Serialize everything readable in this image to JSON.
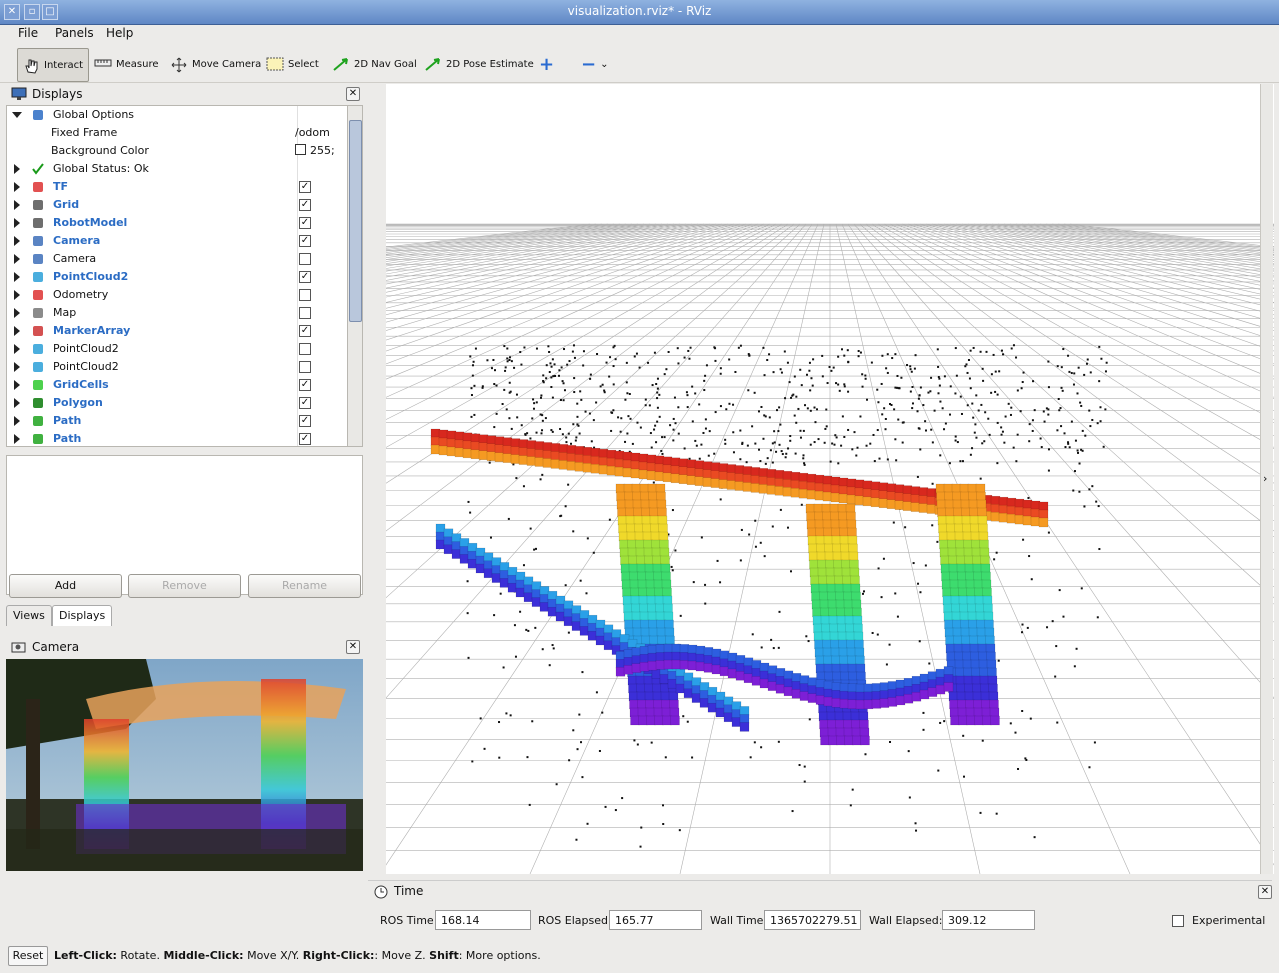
{
  "window": {
    "title": "visualization.rviz* - RViz"
  },
  "menu": {
    "file": "File",
    "panels": "Panels",
    "help": "Help"
  },
  "toolbar": {
    "interact": "Interact",
    "measure": "Measure",
    "move_camera": "Move Camera",
    "select": "Select",
    "nav_goal": "2D Nav Goal",
    "pose_estimate": "2D Pose Estimate"
  },
  "displays": {
    "title": "Displays",
    "items": [
      {
        "label": "Global Options",
        "value": "",
        "checked": null,
        "bold": false,
        "expanded": true
      },
      {
        "label": "Fixed Frame",
        "value": "/odom",
        "checked": null,
        "bold": false,
        "child": true
      },
      {
        "label": "Background Color",
        "value": "255;",
        "checked": null,
        "bold": false,
        "child": true
      },
      {
        "label": "Global Status: Ok",
        "value": "",
        "checked": null,
        "bold": false
      },
      {
        "label": "TF",
        "checked": true,
        "bold": true
      },
      {
        "label": "Grid",
        "checked": true,
        "bold": true
      },
      {
        "label": "RobotModel",
        "checked": true,
        "bold": true
      },
      {
        "label": "Camera",
        "checked": true,
        "bold": true
      },
      {
        "label": "Camera",
        "checked": false,
        "bold": false
      },
      {
        "label": "PointCloud2",
        "checked": true,
        "bold": true
      },
      {
        "label": "Odometry",
        "checked": false,
        "bold": false
      },
      {
        "label": "Map",
        "checked": false,
        "bold": false
      },
      {
        "label": "MarkerArray",
        "checked": true,
        "bold": true
      },
      {
        "label": "PointCloud2",
        "checked": false,
        "bold": false
      },
      {
        "label": "PointCloud2",
        "checked": false,
        "bold": false
      },
      {
        "label": "GridCells",
        "checked": true,
        "bold": true
      },
      {
        "label": "Polygon",
        "checked": true,
        "bold": true
      },
      {
        "label": "Path",
        "checked": true,
        "bold": true
      },
      {
        "label": "Path",
        "checked": true,
        "bold": true
      }
    ],
    "add": "Add",
    "remove": "Remove",
    "rename": "Rename"
  },
  "tabs": {
    "views": "Views",
    "displays": "Displays"
  },
  "camera_panel": {
    "title": "Camera"
  },
  "time": {
    "title": "Time",
    "ros_time_label": "ROS Time:",
    "ros_time": "168.14",
    "ros_elapsed_label": "ROS Elapsed:",
    "ros_elapsed": "165.77",
    "wall_time_label": "Wall Time:",
    "wall_time": "1365702279.51",
    "wall_elapsed_label": "Wall Elapsed:",
    "wall_elapsed": "309.12",
    "experimental": "Experimental"
  },
  "status": {
    "reset": "Reset",
    "b1": "Left-Click:",
    "t1": " Rotate. ",
    "b2": "Middle-Click:",
    "t2": " Move X/Y. ",
    "b3": "Right-Click:",
    "t3": ": Move Z. ",
    "b4": "Shift",
    "t4": ": More options."
  }
}
